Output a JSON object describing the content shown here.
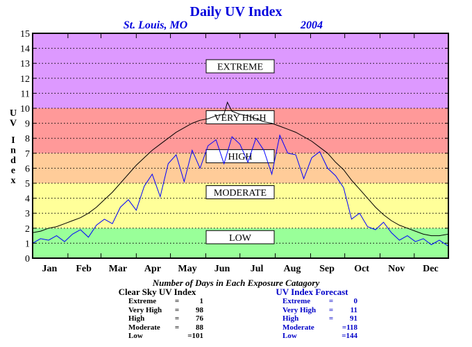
{
  "chart_data": {
    "type": "line",
    "title": "Daily UV Index",
    "subtitle_location": "St. Louis, MO",
    "subtitle_year": "2004",
    "ylabel": "UV Index",
    "ylim": [
      0,
      15
    ],
    "yticks": [
      "0",
      "1",
      "2",
      "3",
      "4",
      "5",
      "6",
      "7",
      "8",
      "9",
      "10",
      "11",
      "12",
      "13",
      "14",
      "15"
    ],
    "xlim": [
      1,
      366
    ],
    "months": [
      {
        "label": "Jan",
        "day": 1
      },
      {
        "label": "Feb",
        "day": 32
      },
      {
        "label": "Mar",
        "day": 61
      },
      {
        "label": "Apr",
        "day": 92
      },
      {
        "label": "May",
        "day": 122
      },
      {
        "label": "Jun",
        "day": 153
      },
      {
        "label": "Jul",
        "day": 183
      },
      {
        "label": "Aug",
        "day": 214
      },
      {
        "label": "Sep",
        "day": 245
      },
      {
        "label": "Oct",
        "day": 275
      },
      {
        "label": "Nov",
        "day": 306
      },
      {
        "label": "Dec",
        "day": 336
      }
    ],
    "bands": [
      {
        "name": "LOW",
        "from": 0,
        "to": 2,
        "color": "#99ff99",
        "label_y": 1.4
      },
      {
        "name": "MODERATE",
        "from": 2,
        "to": 5,
        "color": "#ffff99",
        "label_y": 4.4
      },
      {
        "name": "HIGH",
        "from": 5,
        "to": 7,
        "color": "#ffcc99",
        "label_y": 6.8
      },
      {
        "name": "VERY HIGH",
        "from": 7,
        "to": 10,
        "color": "#ff9999",
        "label_y": 9.4
      },
      {
        "name": "EXTREME",
        "from": 10,
        "to": 15,
        "color": "#dd99ff",
        "label_y": 12.8
      }
    ],
    "grid": true,
    "series": [
      {
        "name": "Clear Sky UV Index",
        "color": "#000000",
        "x": [
          1,
          8,
          15,
          22,
          29,
          36,
          43,
          50,
          57,
          64,
          71,
          78,
          85,
          92,
          99,
          106,
          113,
          120,
          127,
          134,
          141,
          148,
          155,
          162,
          169,
          172,
          176,
          183,
          190,
          197,
          204,
          211,
          218,
          225,
          232,
          239,
          246,
          253,
          260,
          267,
          274,
          281,
          288,
          295,
          302,
          309,
          316,
          323,
          330,
          337,
          344,
          351,
          358,
          366
        ],
        "values": [
          1.7,
          1.8,
          2.0,
          2.1,
          2.3,
          2.5,
          2.7,
          3.0,
          3.4,
          3.9,
          4.4,
          5.0,
          5.6,
          6.2,
          6.7,
          7.2,
          7.6,
          8.0,
          8.4,
          8.7,
          9.0,
          9.2,
          9.3,
          9.5,
          9.6,
          10.4,
          9.8,
          9.6,
          9.5,
          9.3,
          9.1,
          9.0,
          8.8,
          8.6,
          8.4,
          8.1,
          7.8,
          7.4,
          7.0,
          6.4,
          5.9,
          5.2,
          4.6,
          4.0,
          3.4,
          2.9,
          2.5,
          2.2,
          2.0,
          1.8,
          1.6,
          1.5,
          1.5,
          1.6
        ]
      },
      {
        "name": "UV Index Forecast",
        "color": "#0000ff",
        "x": [
          1,
          8,
          15,
          22,
          29,
          36,
          43,
          50,
          57,
          64,
          71,
          78,
          85,
          92,
          99,
          106,
          113,
          120,
          127,
          134,
          141,
          148,
          155,
          162,
          169,
          176,
          183,
          190,
          197,
          204,
          211,
          218,
          225,
          232,
          239,
          246,
          253,
          260,
          267,
          274,
          281,
          288,
          295,
          302,
          309,
          316,
          323,
          330,
          337,
          344,
          351,
          358,
          366
        ],
        "values": [
          1.0,
          1.3,
          1.2,
          1.5,
          1.1,
          1.6,
          1.9,
          1.4,
          2.2,
          2.6,
          2.3,
          3.4,
          3.9,
          3.2,
          4.8,
          5.6,
          4.1,
          6.3,
          6.9,
          5.1,
          7.2,
          6.0,
          7.5,
          7.9,
          6.3,
          8.1,
          7.6,
          6.4,
          8.0,
          7.2,
          5.6,
          8.2,
          7.0,
          6.9,
          5.3,
          6.7,
          7.1,
          6.0,
          5.5,
          4.7,
          2.6,
          3.0,
          2.1,
          1.9,
          2.4,
          1.7,
          1.2,
          1.5,
          1.1,
          1.3,
          0.9,
          1.2,
          0.8
        ]
      }
    ]
  },
  "caption": "Number of Days in Each Exposure Catagory",
  "clear_sky": {
    "title": "Clear Sky UV Index",
    "rows": [
      {
        "label": "Extreme",
        "value": "1"
      },
      {
        "label": "Very High",
        "value": "98"
      },
      {
        "label": "High",
        "value": "76"
      },
      {
        "label": "Moderate",
        "value": "88"
      },
      {
        "label": "Low",
        "value": "=101"
      }
    ]
  },
  "forecast": {
    "title": "UV Index Forecast",
    "rows": [
      {
        "label": "Extreme",
        "value": "0"
      },
      {
        "label": "Very High",
        "value": "11"
      },
      {
        "label": "High",
        "value": "91"
      },
      {
        "label": "Moderate",
        "value": "=118"
      },
      {
        "label": "Low",
        "value": "=144"
      }
    ]
  }
}
